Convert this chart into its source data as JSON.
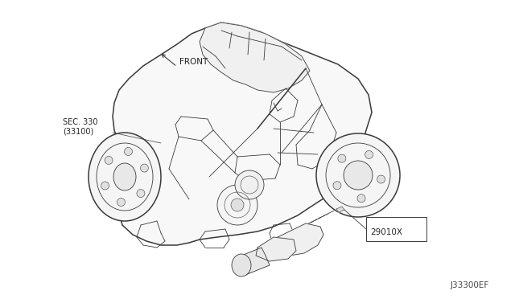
{
  "bg_color": "#ffffff",
  "fig_width": 6.4,
  "fig_height": 3.72,
  "dpi": 100,
  "front_label": "FRONT",
  "sec_label": "SEC. 330",
  "sec_sub": "(33100)",
  "part_label": "29010X",
  "diagram_code": "J33300EF",
  "line_color": "#3a3a3a",
  "lw_main": 1.1,
  "lw_thin": 0.6,
  "lw_xtra": 0.4,
  "font_small": 7,
  "font_med": 8,
  "font_code": 7.5
}
